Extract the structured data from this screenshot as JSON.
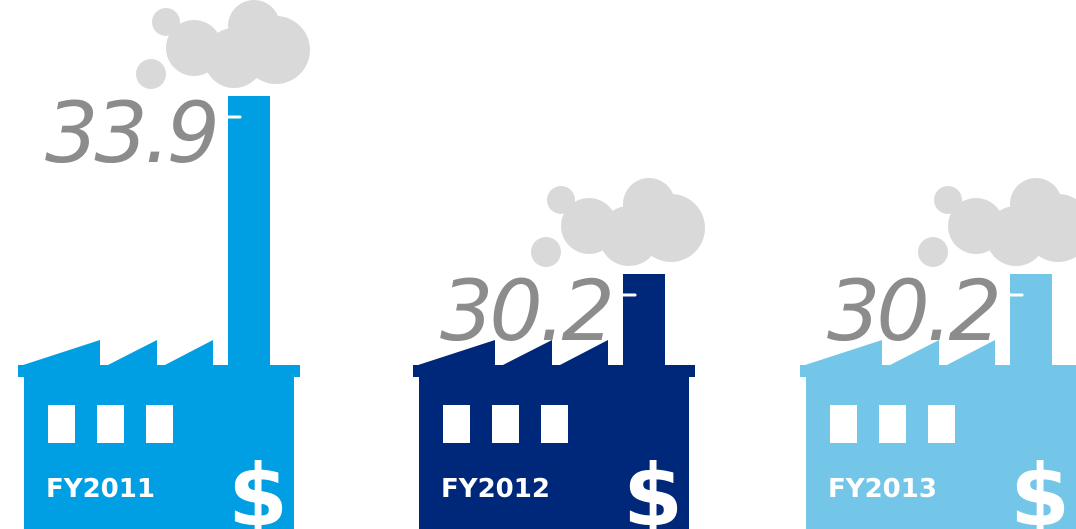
{
  "chart_data": {
    "type": "bar",
    "categories": [
      "FY2011",
      "FY2012",
      "FY2013"
    ],
    "values": [
      33.9,
      30.2,
      30.2
    ],
    "colors": [
      "#009fe3",
      "#00287a",
      "#74c6e8"
    ]
  }
}
